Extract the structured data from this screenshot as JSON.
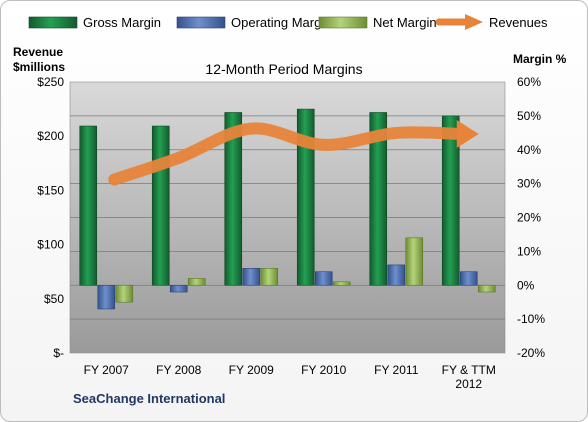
{
  "chart_data": {
    "type": "bar",
    "title": "12-Month Period Margins",
    "categories": [
      [
        "FY 2007"
      ],
      [
        "FY 2008"
      ],
      [
        "FY 2009"
      ],
      [
        "FY 2010"
      ],
      [
        "FY 2011"
      ],
      [
        "FY & TTM",
        "2012"
      ]
    ],
    "left_axis": {
      "label_lines": [
        "Revenue",
        "$millions"
      ],
      "ticks": [
        "$-",
        "$50",
        "$100",
        "$150",
        "$200",
        "$250"
      ],
      "range": [
        0,
        250
      ]
    },
    "right_axis": {
      "label": "Margin %",
      "ticks": [
        "-20%",
        "-10%",
        "0%",
        "10%",
        "20%",
        "30%",
        "40%",
        "50%",
        "60%"
      ],
      "range": [
        -20,
        60
      ]
    },
    "series": [
      {
        "name": "Gross Margin",
        "axis": "right",
        "color": "#1a7a3e",
        "values": [
          47,
          47,
          51,
          52,
          51,
          50
        ]
      },
      {
        "name": "Operating Margin",
        "axis": "right",
        "color": "#4f6fb0",
        "values": [
          -7,
          -2,
          5,
          4,
          6,
          4
        ]
      },
      {
        "name": "Net Margin",
        "axis": "right",
        "color": "#9bbb59",
        "values": [
          -5,
          2,
          5,
          1,
          14,
          -2
        ]
      }
    ],
    "line_series": {
      "name": "Revenues",
      "axis": "left",
      "color": "#e8843a",
      "values": [
        160,
        180,
        207,
        192,
        203,
        202
      ]
    },
    "annotation": "SeaChange International",
    "legend_position": "top",
    "grid": true
  }
}
